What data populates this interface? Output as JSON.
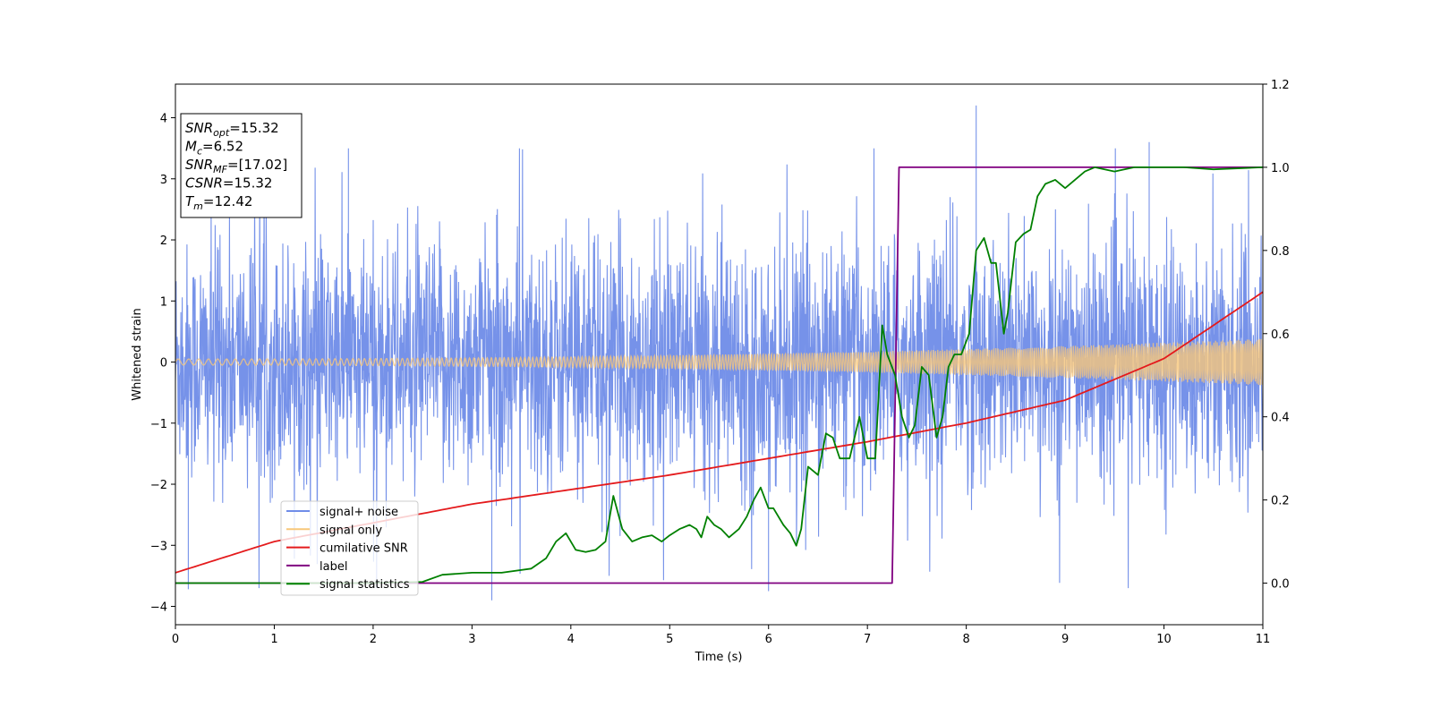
{
  "chart_data": {
    "type": "line",
    "xlabel": "Time (s)",
    "ylabel": "Whitened strain",
    "xlim": [
      0,
      11
    ],
    "ylim_left": [
      -4.3,
      4.55
    ],
    "ylim_right": [
      -0.1,
      1.2
    ],
    "x_ticks": [
      0,
      1,
      2,
      3,
      4,
      5,
      6,
      7,
      8,
      9,
      10,
      11
    ],
    "y_ticks_left": [
      -4,
      -3,
      -2,
      -1,
      0,
      1,
      2,
      3,
      4
    ],
    "y_ticks_right": [
      0.0,
      0.2,
      0.4,
      0.6,
      0.8,
      1.0,
      1.2
    ],
    "info_box": {
      "lines": [
        {
          "main": "SNR",
          "sub": "opt",
          "rest": "=15.32"
        },
        {
          "main": "M",
          "sub": "c",
          "rest": "=6.52"
        },
        {
          "main": "SNR",
          "sub": "MF",
          "rest": "=[17.02]"
        },
        {
          "main": "CSNR",
          "sub": "",
          "rest": "=15.32"
        },
        {
          "main": "T",
          "sub": "m",
          "rest": "=12.42"
        }
      ]
    },
    "legend": {
      "position": "lower-left",
      "entries": [
        {
          "label": "signal+ noise",
          "color": "#6f8ce8"
        },
        {
          "label": "signal only",
          "color": "#f7c77a"
        },
        {
          "label": "cumilative SNR",
          "color": "#e41a1c"
        },
        {
          "label": "label",
          "color": "#800080"
        },
        {
          "label": "signal statistics",
          "color": "#008000"
        }
      ]
    },
    "series": [
      {
        "name": "signal+ noise",
        "axis": "left",
        "color": "#6f8ce8",
        "description": "whitened noisy strain, roughly Gaussian, spikes to about ±3.5 with outliers near x=8.1 (4.2) and x=3.2 (-3.9)"
      },
      {
        "name": "signal only",
        "axis": "left",
        "color": "#f7c77a",
        "amplitude_start": 0.05,
        "amplitude_end": 0.38
      },
      {
        "name": "cumilative SNR",
        "axis": "right",
        "color": "#e41a1c",
        "x": [
          0,
          1,
          2,
          3,
          4,
          5,
          6,
          7,
          8,
          9,
          10,
          11
        ],
        "y": [
          0.025,
          0.1,
          0.145,
          0.19,
          0.225,
          0.26,
          0.3,
          0.34,
          0.385,
          0.44,
          0.54,
          0.7
        ]
      },
      {
        "name": "label",
        "axis": "right",
        "color": "#800080",
        "x": [
          0,
          7.25,
          7.32,
          11
        ],
        "y": [
          0,
          0,
          1,
          1
        ]
      },
      {
        "name": "signal statistics",
        "axis": "right",
        "color": "#008000",
        "x": [
          0,
          1,
          2,
          2.5,
          2.7,
          3.0,
          3.3,
          3.6,
          3.75,
          3.85,
          3.95,
          4.05,
          4.15,
          4.25,
          4.35,
          4.43,
          4.52,
          4.62,
          4.72,
          4.82,
          4.92,
          5.0,
          5.1,
          5.2,
          5.27,
          5.32,
          5.38,
          5.45,
          5.52,
          5.6,
          5.7,
          5.78,
          5.85,
          5.92,
          6.0,
          6.05,
          6.15,
          6.22,
          6.28,
          6.33,
          6.4,
          6.5,
          6.58,
          6.65,
          6.72,
          6.82,
          6.92,
          7.0,
          7.08,
          7.15,
          7.2,
          7.28,
          7.35,
          7.42,
          7.48,
          7.55,
          7.62,
          7.7,
          7.76,
          7.82,
          7.88,
          7.95,
          8.03,
          8.1,
          8.18,
          8.25,
          8.3,
          8.38,
          8.42,
          8.5,
          8.58,
          8.65,
          8.72,
          8.8,
          8.9,
          9.0,
          9.1,
          9.2,
          9.3,
          9.5,
          9.7,
          9.9,
          10.2,
          10.5,
          11.0
        ],
        "y": [
          0.0,
          0.0,
          0.0,
          0.003,
          0.02,
          0.025,
          0.025,
          0.035,
          0.06,
          0.1,
          0.12,
          0.08,
          0.075,
          0.08,
          0.1,
          0.21,
          0.13,
          0.1,
          0.11,
          0.115,
          0.1,
          0.115,
          0.13,
          0.14,
          0.13,
          0.11,
          0.16,
          0.14,
          0.13,
          0.11,
          0.13,
          0.16,
          0.2,
          0.23,
          0.18,
          0.18,
          0.14,
          0.12,
          0.09,
          0.13,
          0.28,
          0.26,
          0.36,
          0.35,
          0.3,
          0.3,
          0.4,
          0.3,
          0.3,
          0.62,
          0.55,
          0.5,
          0.4,
          0.35,
          0.38,
          0.52,
          0.5,
          0.35,
          0.4,
          0.52,
          0.55,
          0.55,
          0.6,
          0.8,
          0.83,
          0.77,
          0.77,
          0.6,
          0.65,
          0.82,
          0.84,
          0.85,
          0.93,
          0.96,
          0.97,
          0.95,
          0.97,
          0.99,
          1.0,
          0.99,
          1.0,
          1.0,
          1.0,
          0.995,
          1.0
        ]
      }
    ]
  }
}
